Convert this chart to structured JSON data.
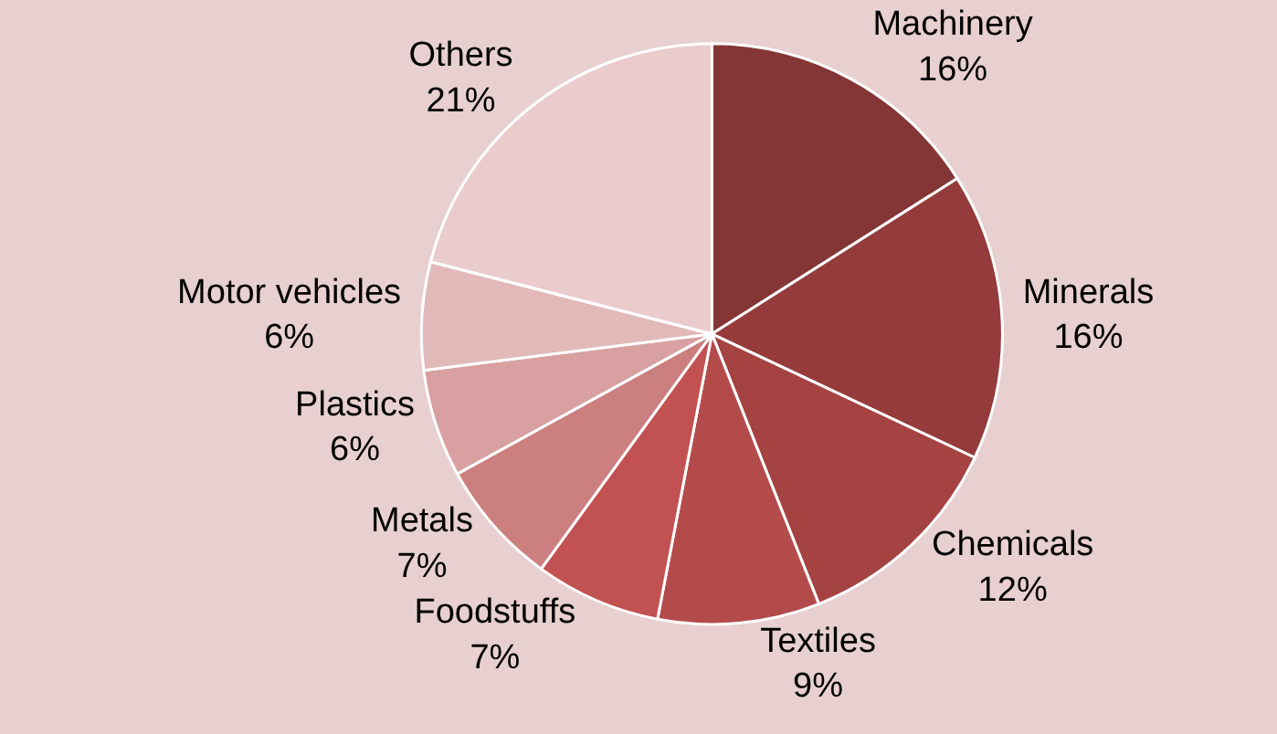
{
  "chart_data": {
    "type": "pie",
    "categories": [
      "Machinery",
      "Minerals",
      "Chemicals",
      "Textiles",
      "Foodstuffs",
      "Metals",
      "Plastics",
      "Motor vehicles",
      "Others"
    ],
    "values": [
      16,
      16,
      12,
      9,
      7,
      7,
      6,
      6,
      21
    ],
    "value_labels": [
      "16%",
      "16%",
      "12%",
      "9%",
      "7%",
      "7%",
      "6%",
      "6%",
      "21%"
    ],
    "colors": [
      "#843535",
      "#953b3b",
      "#a54242",
      "#b44b4b",
      "#c25151",
      "#cc7f7f",
      "#d8a0a0",
      "#e2b9b9",
      "#ebcccc"
    ],
    "legend": false
  }
}
